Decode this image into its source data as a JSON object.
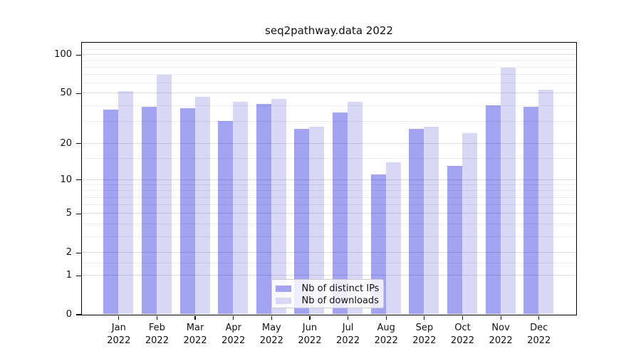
{
  "title": "seq2pathway.data 2022",
  "chart_data": {
    "type": "bar",
    "title": "seq2pathway.data 2022",
    "categories": [
      "Jan 2022",
      "Feb 2022",
      "Mar 2022",
      "Apr 2022",
      "May 2022",
      "Jun 2022",
      "Jul 2022",
      "Aug 2022",
      "Sep 2022",
      "Oct 2022",
      "Nov 2022",
      "Dec 2022"
    ],
    "series": [
      {
        "name": "Nb of distinct IPs",
        "color": "#a3a3f3",
        "values": [
          37,
          39,
          38,
          30,
          41,
          26,
          35,
          11,
          26,
          13,
          40,
          39
        ]
      },
      {
        "name": "Nb of downloads",
        "color": "#d8d8f6",
        "values": [
          52,
          70,
          47,
          43,
          45,
          27,
          43,
          14,
          27,
          24,
          79,
          53
        ]
      }
    ],
    "xlabel": "",
    "ylabel": "",
    "yscale": "log1p",
    "ylim": [
      0,
      125
    ],
    "yticks_major": [
      0,
      1,
      2,
      5,
      10,
      20,
      50,
      100
    ],
    "yticks_minor": [
      1.5,
      3,
      4,
      6,
      7,
      8,
      9,
      15,
      30,
      40,
      60,
      70,
      80,
      90,
      110
    ],
    "grid": "horizontal",
    "legend_position": "lower center"
  },
  "colors": {
    "grid_major": "#dddddd",
    "grid_minor": "#ededed",
    "spine": "#000000",
    "background": "#ffffff"
  }
}
